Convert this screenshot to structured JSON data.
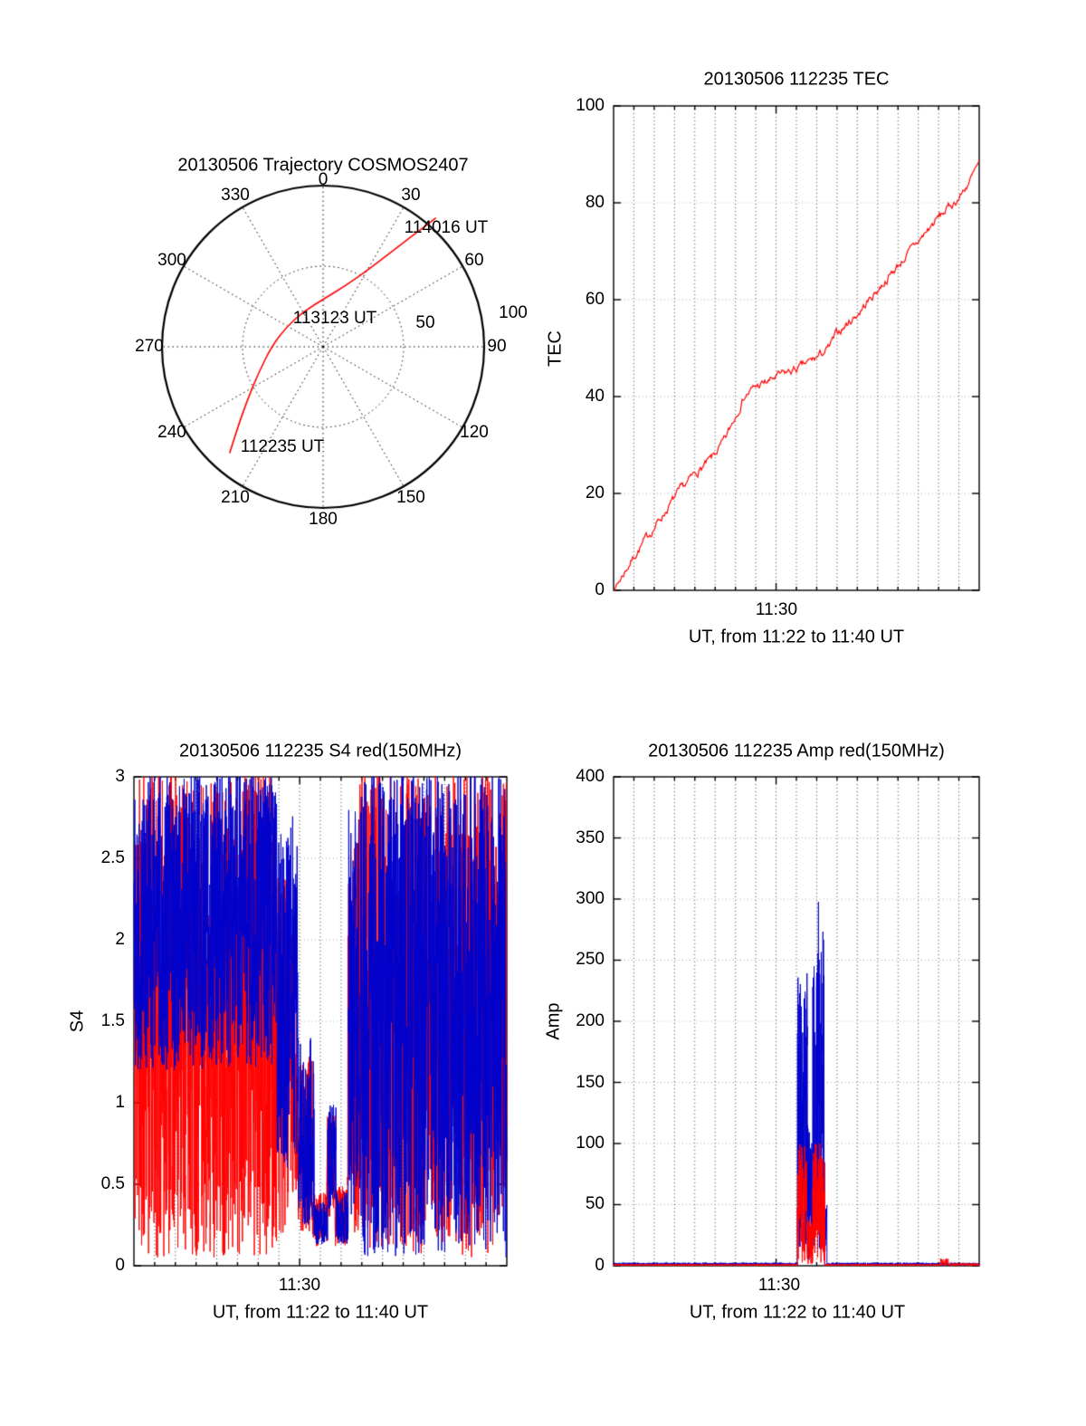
{
  "figure": {
    "background": "#ffffff",
    "line_red": "#ff0000",
    "line_blue": "#0000cc",
    "axis_color": "#000000"
  },
  "chart_data": [
    {
      "id": "trajectory",
      "type": "polar-trajectory",
      "title": "20130506 Trajectory COSMOS2407",
      "azimuth_ticks": [
        0,
        30,
        60,
        90,
        120,
        150,
        180,
        210,
        240,
        270,
        300,
        330
      ],
      "radial_ticks": [
        50,
        100
      ],
      "r_max": 100,
      "line_color": "#ff0000",
      "time_annotations": [
        "114016 UT",
        "113123 UT",
        "112235 UT"
      ],
      "trajectory_uv": [
        [
          -58,
          -66
        ],
        [
          -53,
          -50
        ],
        [
          -47,
          -33
        ],
        [
          -40,
          -16
        ],
        [
          -32,
          0
        ],
        [
          -23,
          12
        ],
        [
          -12,
          22
        ],
        [
          1,
          30
        ],
        [
          14,
          38
        ],
        [
          27,
          47
        ],
        [
          40,
          57
        ],
        [
          53,
          67
        ],
        [
          65,
          76
        ],
        [
          70,
          80
        ]
      ]
    },
    {
      "id": "tec",
      "type": "line",
      "title": "20130506 112235 TEC",
      "xlabel": "UT, from 11:22 to 11:40 UT",
      "ylabel": "TEC",
      "x_tick_label": "11:30",
      "x_tick_minute": 8,
      "x_range_minutes": [
        0,
        18
      ],
      "ylim": [
        0,
        100
      ],
      "yticks": [
        0,
        20,
        40,
        60,
        80,
        100
      ],
      "grid": "dotted",
      "series": [
        {
          "name": "TEC red",
          "color": "#ff0000",
          "x": [
            0,
            1,
            2,
            3,
            4,
            4.8,
            5.5,
            6,
            6.4,
            7,
            7.6,
            8,
            8.6,
            9.2,
            10,
            10.6,
            11,
            12,
            13,
            14,
            15,
            16,
            17,
            17.6,
            18
          ],
          "y": [
            0,
            7,
            13,
            19,
            24,
            27,
            31,
            36,
            40,
            42,
            43,
            44,
            45,
            46,
            48,
            50,
            53,
            57,
            62,
            67,
            72,
            77,
            81,
            85,
            88
          ]
        }
      ]
    },
    {
      "id": "s4",
      "type": "noisy-line",
      "title": "20130506 112235 S4 red(150MHz)",
      "xlabel": "UT, from 11:22 to 11:40 UT",
      "ylabel": "S4",
      "x_tick_label": "11:30",
      "x_tick_minute": 8,
      "x_range_minutes": [
        0,
        18
      ],
      "ylim": [
        0,
        3
      ],
      "yticks": [
        0,
        0.5,
        1,
        1.5,
        2,
        2.5,
        3
      ],
      "grid": "dotted",
      "series": [
        {
          "name": "S4 150MHz red",
          "color": "#ff0000",
          "envelope_segments": [
            [
              0,
              6.8,
              0.05,
              3.05
            ],
            [
              6.8,
              7.8,
              0.15,
              2.4
            ],
            [
              7.8,
              8.6,
              0.2,
              1.3
            ],
            [
              8.6,
              9.3,
              0.12,
              0.45
            ],
            [
              9.3,
              9.7,
              0.3,
              0.95
            ],
            [
              9.7,
              10.3,
              0.12,
              0.5
            ],
            [
              10.3,
              10.9,
              0.2,
              2.6
            ],
            [
              10.9,
              18,
              0.05,
              3.05
            ]
          ]
        },
        {
          "name": "S4 second frequency blue",
          "color": "#0000cc",
          "envelope_segments": [
            [
              0,
              6.9,
              1.2,
              3.05
            ],
            [
              6.9,
              7.9,
              0.6,
              2.8
            ],
            [
              7.9,
              8.7,
              0.25,
              1.4
            ],
            [
              8.7,
              9.35,
              0.13,
              0.4
            ],
            [
              9.35,
              9.75,
              0.25,
              1.0
            ],
            [
              9.75,
              10.35,
              0.13,
              0.45
            ],
            [
              10.35,
              11.0,
              0.3,
              2.8
            ],
            [
              11.0,
              18,
              0.05,
              3.05
            ]
          ]
        }
      ]
    },
    {
      "id": "amp",
      "type": "noisy-line",
      "title": "20130506 112235 Amp red(150MHz)",
      "xlabel": "UT, from 11:22 to 11:40 UT",
      "ylabel": "Amp",
      "x_tick_label": "11:30",
      "x_tick_minute": 8,
      "x_range_minutes": [
        0,
        18
      ],
      "ylim": [
        0,
        400
      ],
      "yticks": [
        0,
        50,
        100,
        150,
        200,
        250,
        300,
        350,
        400
      ],
      "grid": "dotted",
      "series": [
        {
          "name": "Amp second frequency blue",
          "color": "#0000cc",
          "envelope_segments": [
            [
              0,
              9.05,
              0,
              2.5
            ],
            [
              9.05,
              9.55,
              10,
              245
            ],
            [
              9.55,
              9.8,
              4,
              120
            ],
            [
              9.8,
              10.05,
              15,
              250
            ],
            [
              10.05,
              10.38,
              10,
              300
            ],
            [
              10.38,
              10.5,
              0,
              50
            ],
            [
              10.5,
              18,
              0,
              2.5
            ]
          ]
        },
        {
          "name": "Amp 150MHz red",
          "color": "#ff0000",
          "envelope_segments": [
            [
              0,
              9.05,
              0,
              1.5
            ],
            [
              9.05,
              9.5,
              2,
              100
            ],
            [
              9.5,
              9.8,
              1,
              40
            ],
            [
              9.8,
              10.4,
              2,
              100
            ],
            [
              10.4,
              16.1,
              0,
              1.5
            ],
            [
              16.1,
              16.5,
              0,
              6
            ],
            [
              16.5,
              18,
              0,
              2
            ]
          ]
        }
      ]
    }
  ]
}
